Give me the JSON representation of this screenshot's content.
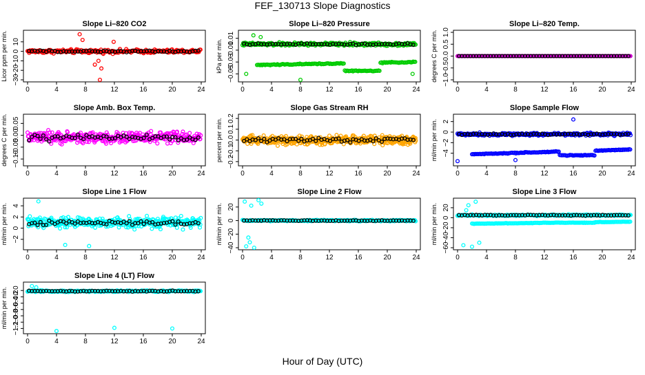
{
  "title": "FEF_130713  Slope Diagnostics",
  "xlabel": "Hour of Day (UTC)",
  "chart_data": [
    {
      "type": "scatter",
      "title": "Slope Li–820 CO2",
      "ylabel": "Licor ppm per min.",
      "xlim": [
        0,
        24
      ],
      "ylim": [
        -30,
        20
      ],
      "xticks": [
        0,
        4,
        8,
        12,
        16,
        20,
        24
      ],
      "yticks": [
        -30,
        -20,
        -10,
        0,
        10
      ],
      "ytick_labels": [
        "−30",
        "−20",
        "−10",
        "0",
        "10"
      ],
      "colors": {
        "scatter": "#ff0000",
        "mean": "#000000"
      },
      "pattern": {
        "base": 0,
        "spread": 3,
        "n": 220,
        "outliers": [
          [
            7.2,
            18
          ],
          [
            9.8,
            -10
          ],
          [
            10,
            -30
          ],
          [
            9.3,
            -14
          ],
          [
            10.2,
            -18
          ],
          [
            7.6,
            12
          ],
          [
            11.9,
            10
          ]
        ]
      }
    },
    {
      "type": "scatter",
      "title": "Slope Li–820 Pressure",
      "ylabel": "kPa per min.",
      "xlim": [
        0,
        24
      ],
      "ylim": [
        -0.06,
        0.02
      ],
      "xticks": [
        0,
        4,
        8,
        12,
        16,
        20,
        24
      ],
      "yticks": [
        -0.05,
        -0.03,
        -0.01,
        0.01
      ],
      "ytick_labels": [
        "−0.05",
        "−0.03",
        "−0.01",
        "0.01"
      ],
      "colors": {
        "scatter": "#00cc00",
        "mean": "#000000"
      },
      "pattern": {
        "base": 0.0,
        "spread": 0.004,
        "n": 260,
        "band2": {
          "start": -0.035,
          "end": -0.03,
          "dip": -0.045
        },
        "outliers": [
          [
            8,
            -0.06
          ],
          [
            0.5,
            -0.05
          ],
          [
            23.5,
            -0.05
          ],
          [
            1.5,
            0.015
          ],
          [
            2.5,
            0.012
          ]
        ]
      }
    },
    {
      "type": "scatter",
      "title": "Slope Li–820 Temp.",
      "ylabel": "degrees C per min.",
      "xlim": [
        0,
        24
      ],
      "ylim": [
        -1.0,
        1.0
      ],
      "xticks": [
        0,
        4,
        8,
        12,
        16,
        20,
        24
      ],
      "yticks": [
        -1.0,
        -0.5,
        0.0,
        0.5,
        1.0
      ],
      "ytick_labels": [
        "−1.0",
        "−0.5",
        "0.0",
        "0.5",
        "1.0"
      ],
      "colors": {
        "scatter": "#cc00cc",
        "mean": "#000000"
      },
      "pattern": {
        "base": 0,
        "spread": 0.0,
        "n": 220,
        "outliers": []
      }
    },
    {
      "type": "scatter",
      "title": "Slope Amb. Box Temp.",
      "ylabel": "degrees C per min.",
      "xlim": [
        0,
        24
      ],
      "ylim": [
        -0.12,
        0.08
      ],
      "xticks": [
        0,
        4,
        8,
        12,
        16,
        20,
        24
      ],
      "yticks": [
        -0.1,
        -0.05,
        0.0,
        0.05
      ],
      "ytick_labels": [
        "−0.10",
        "−0.05",
        "0.00",
        "0.05"
      ],
      "colors": {
        "scatter": "#ff00ff",
        "mean": "#000000"
      },
      "pattern": {
        "base": -0.01,
        "spread": 0.035,
        "n": 360,
        "outliers": []
      }
    },
    {
      "type": "scatter",
      "title": "Slope Gas Stream RH",
      "ylabel": "percent per min.",
      "xlim": [
        0,
        24
      ],
      "ylim": [
        -0.22,
        0.22
      ],
      "xticks": [
        0,
        4,
        8,
        12,
        16,
        20,
        24
      ],
      "yticks": [
        -0.2,
        -0.1,
        0.0,
        0.1,
        0.2
      ],
      "ytick_labels": [
        "−0.2",
        "−0.1",
        "0.0",
        "0.1",
        "0.2"
      ],
      "colors": {
        "scatter": "#ffa500",
        "mean": "#000000"
      },
      "pattern": {
        "base": 0,
        "spread": 0.06,
        "n": 460,
        "outliers": []
      }
    },
    {
      "type": "scatter",
      "title": "Slope Sample Flow",
      "ylabel": "ml/min per min.",
      "xlim": [
        0,
        24
      ],
      "ylim": [
        -6,
        3
      ],
      "xticks": [
        0,
        4,
        8,
        12,
        16,
        20,
        24
      ],
      "yticks": [
        -4,
        -2,
        0,
        2
      ],
      "ytick_labels": [
        "−4",
        "−2",
        "0",
        "2"
      ],
      "colors": {
        "scatter": "#0000ff",
        "mean": "#000000"
      },
      "pattern": {
        "base": -0.4,
        "spread": 0.4,
        "n": 260,
        "band2": {
          "start": -4.2,
          "end": -3.3,
          "dip": -4.4
        },
        "outliers": [
          [
            0,
            -5.5
          ],
          [
            8,
            -5.3
          ],
          [
            16,
            2.4
          ]
        ]
      }
    },
    {
      "type": "scatter",
      "title": "Slope Line 1 Flow",
      "ylabel": "ml/min per min.",
      "xlim": [
        0,
        24
      ],
      "ylim": [
        -3.5,
        5
      ],
      "xticks": [
        0,
        4,
        8,
        12,
        16,
        20,
        24
      ],
      "yticks": [
        -2,
        0,
        2,
        4
      ],
      "ytick_labels": [
        "−2",
        "0",
        "2",
        "4"
      ],
      "colors": {
        "scatter": "#00ffff",
        "mean": "#000000"
      },
      "pattern": {
        "base": 1.0,
        "spread": 1.4,
        "n": 380,
        "outliers": [
          [
            1.5,
            4.8
          ],
          [
            8.5,
            -3.2
          ],
          [
            5.2,
            -3.0
          ]
        ]
      }
    },
    {
      "type": "scatter",
      "title": "Slope Line 2 Flow",
      "ylabel": "ml/min per min.",
      "xlim": [
        0,
        24
      ],
      "ylim": [
        -40,
        30
      ],
      "xticks": [
        0,
        4,
        8,
        12,
        16,
        20,
        24
      ],
      "yticks": [
        -40,
        -20,
        0,
        20
      ],
      "ytick_labels": [
        "−40",
        "−20",
        "0",
        "20"
      ],
      "colors": {
        "scatter": "#00ffff",
        "mean": "#000000"
      },
      "pattern": {
        "base": 0,
        "spread": 1.5,
        "n": 280,
        "outliers": [
          [
            0.3,
            28
          ],
          [
            0.5,
            -38
          ],
          [
            1,
            -32
          ],
          [
            1.6,
            -40
          ],
          [
            2.2,
            30
          ],
          [
            1.2,
            22
          ],
          [
            2.6,
            25
          ],
          [
            0.8,
            -25
          ]
        ]
      }
    },
    {
      "type": "scatter",
      "title": "Slope Line 3 Flow",
      "ylabel": "ml/min per min.",
      "xlim": [
        0,
        24
      ],
      "ylim": [
        -60,
        35
      ],
      "xticks": [
        0,
        4,
        8,
        12,
        16,
        20,
        24
      ],
      "yticks": [
        -60,
        -40,
        -20,
        0,
        20
      ],
      "ytick_labels": [
        "−60",
        "−40",
        "−20",
        "0",
        "20"
      ],
      "colors": {
        "scatter": "#00ffff",
        "mean": "#000000"
      },
      "pattern": {
        "base": 5,
        "spread": 2.0,
        "n": 260,
        "band2": {
          "start": -12,
          "end": -8,
          "dip": -10
        },
        "outliers": [
          [
            1.5,
            25
          ],
          [
            2.5,
            32
          ],
          [
            0.8,
            -55
          ],
          [
            2,
            -58
          ],
          [
            3,
            -50
          ],
          [
            1.2,
            15
          ]
        ]
      }
    },
    {
      "type": "scatter",
      "title": "Slope Line 4 (LT) Flow",
      "ylabel": "ml/min per min.",
      "xlim": [
        0,
        24
      ],
      "ylim": [
        -1.3,
        0.2
      ],
      "xticks": [
        0,
        4,
        8,
        12,
        16,
        20,
        24
      ],
      "yticks": [
        -1.2,
        -1.0,
        -0.8,
        -0.6,
        -0.4,
        -0.2,
        0.0
      ],
      "ytick_labels": [
        "−1.2",
        "−1.0",
        "−0.8",
        "−0.6",
        "−0.4",
        "−0.2",
        "0.0"
      ],
      "colors": {
        "scatter": "#00ffff",
        "mean": "#000000"
      },
      "pattern": {
        "base": -0.02,
        "spread": 0.04,
        "n": 260,
        "outliers": [
          [
            4,
            -1.28
          ],
          [
            12,
            -1.18
          ],
          [
            20,
            -1.2
          ],
          [
            0.6,
            0.14
          ],
          [
            1.2,
            0.1
          ]
        ]
      }
    }
  ]
}
